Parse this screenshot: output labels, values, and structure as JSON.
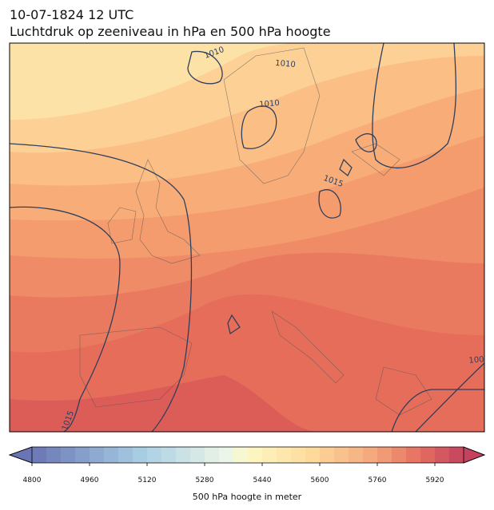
{
  "header": {
    "time": "10-07-1824 12 UTC",
    "title": "Luchtdruk op zeeniveau in hPa en 500 hPa hoogte"
  },
  "map": {
    "contour_labels": [
      "1010",
      "1010",
      "1010",
      "1015",
      "1015",
      "100"
    ]
  },
  "colorbar": {
    "label": "500 hPa hoogte in meter",
    "lim": [
      4800,
      6000
    ],
    "step": 40,
    "ticks": [
      4800,
      4960,
      5120,
      5280,
      5440,
      5600,
      5760,
      5920
    ]
  }
}
